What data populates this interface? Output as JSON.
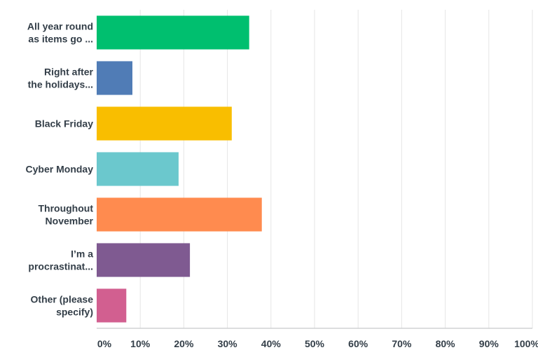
{
  "chart_data": {
    "type": "bar",
    "orientation": "horizontal",
    "title": "",
    "xlabel": "",
    "ylabel": "",
    "xlim": [
      0,
      100
    ],
    "grid": true,
    "legend": "none",
    "categories": [
      [
        "All year round",
        "as items go ..."
      ],
      [
        "Right after",
        "the holidays..."
      ],
      [
        "Black Friday"
      ],
      [
        "Cyber Monday"
      ],
      [
        "Throughout",
        "November"
      ],
      [
        "I’m a",
        "procrastinat..."
      ],
      [
        "Other (please",
        "specify)"
      ]
    ],
    "values": [
      35,
      8.2,
      31,
      18.8,
      37.9,
      21.4,
      6.8
    ],
    "colors": [
      "#00bf6f",
      "#507cb6",
      "#f9be00",
      "#6bc8cd",
      "#ff8b4f",
      "#7f5a91",
      "#d25f90"
    ],
    "ticks": [
      "0%",
      "10%",
      "20%",
      "30%",
      "40%",
      "50%",
      "60%",
      "70%",
      "80%",
      "90%",
      "100%"
    ],
    "grid_color": "#e5e5e5",
    "axis_color": "#d0d2d3"
  }
}
